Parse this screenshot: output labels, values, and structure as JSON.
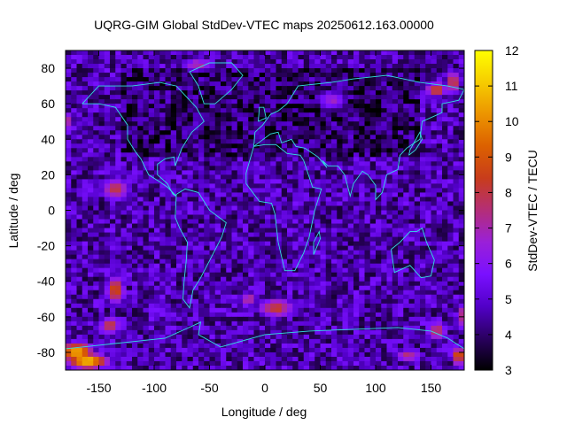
{
  "chart_data": {
    "type": "heatmap",
    "title": "UQRG-GIM Global StdDev-VTEC maps 20250612.163.00000",
    "xlabel": "Longitude / deg",
    "ylabel": "Latitude / deg",
    "colorbar_label": "StdDev-VTEC / TECU",
    "xlim": [
      -180,
      180
    ],
    "ylim": [
      -90,
      90
    ],
    "x_ticks": [
      -150,
      -100,
      -50,
      0,
      50,
      100,
      150
    ],
    "y_ticks": [
      -80,
      -60,
      -40,
      -20,
      0,
      20,
      40,
      60,
      80
    ],
    "colorbar_range": [
      3,
      12
    ],
    "colorbar_ticks": [
      3,
      4,
      5,
      6,
      7,
      8,
      9,
      10,
      11,
      12
    ],
    "colormap": [
      "#000000",
      "#2a0060",
      "#5200c8",
      "#7a10ff",
      "#9a20d8",
      "#b42e78",
      "#c83c1c",
      "#dc6000",
      "#ec9400",
      "#f6cc00",
      "#ffff00"
    ],
    "grid": false,
    "lon_step": 5,
    "lat_step": 2.5,
    "background_level": 4.6,
    "hotspots": [
      {
        "lon": -170,
        "lat": -80,
        "value": 10.5,
        "spread_lon": 20,
        "spread_lat": 8
      },
      {
        "lon": -160,
        "lat": -85,
        "value": 11.0,
        "spread_lon": 25,
        "spread_lat": 6
      },
      {
        "lon": 175,
        "lat": -82,
        "value": 9.0,
        "spread_lon": 10,
        "spread_lat": 8
      },
      {
        "lon": -135,
        "lat": -45,
        "value": 8.8,
        "spread_lon": 12,
        "spread_lat": 12
      },
      {
        "lon": -140,
        "lat": -65,
        "value": 8.0,
        "spread_lon": 15,
        "spread_lat": 8
      },
      {
        "lon": -135,
        "lat": 12,
        "value": 7.8,
        "spread_lon": 20,
        "spread_lat": 10
      },
      {
        "lon": 10,
        "lat": -55,
        "value": 8.2,
        "spread_lon": 25,
        "spread_lat": 8
      },
      {
        "lon": -15,
        "lat": -50,
        "value": 7.4,
        "spread_lon": 12,
        "spread_lat": 6
      },
      {
        "lon": 60,
        "lat": 62,
        "value": 6.8,
        "spread_lon": 20,
        "spread_lat": 8
      },
      {
        "lon": 155,
        "lat": 68,
        "value": 8.6,
        "spread_lon": 15,
        "spread_lat": 6
      },
      {
        "lon": 170,
        "lat": 72,
        "value": 8.2,
        "spread_lon": 10,
        "spread_lat": 10
      },
      {
        "lon": 155,
        "lat": -68,
        "value": 8.0,
        "spread_lon": 15,
        "spread_lat": 8
      },
      {
        "lon": 178,
        "lat": -60,
        "value": 7.5,
        "spread_lon": 8,
        "spread_lat": 12
      },
      {
        "lon": -178,
        "lat": 50,
        "value": 7.2,
        "spread_lon": 8,
        "spread_lat": 8
      },
      {
        "lon": -60,
        "lat": 82,
        "value": 7.0,
        "spread_lon": 25,
        "spread_lat": 6
      },
      {
        "lon": 130,
        "lat": -82,
        "value": 7.5,
        "spread_lon": 20,
        "spread_lat": 6
      }
    ],
    "coastline_color": "#33e0e0"
  }
}
